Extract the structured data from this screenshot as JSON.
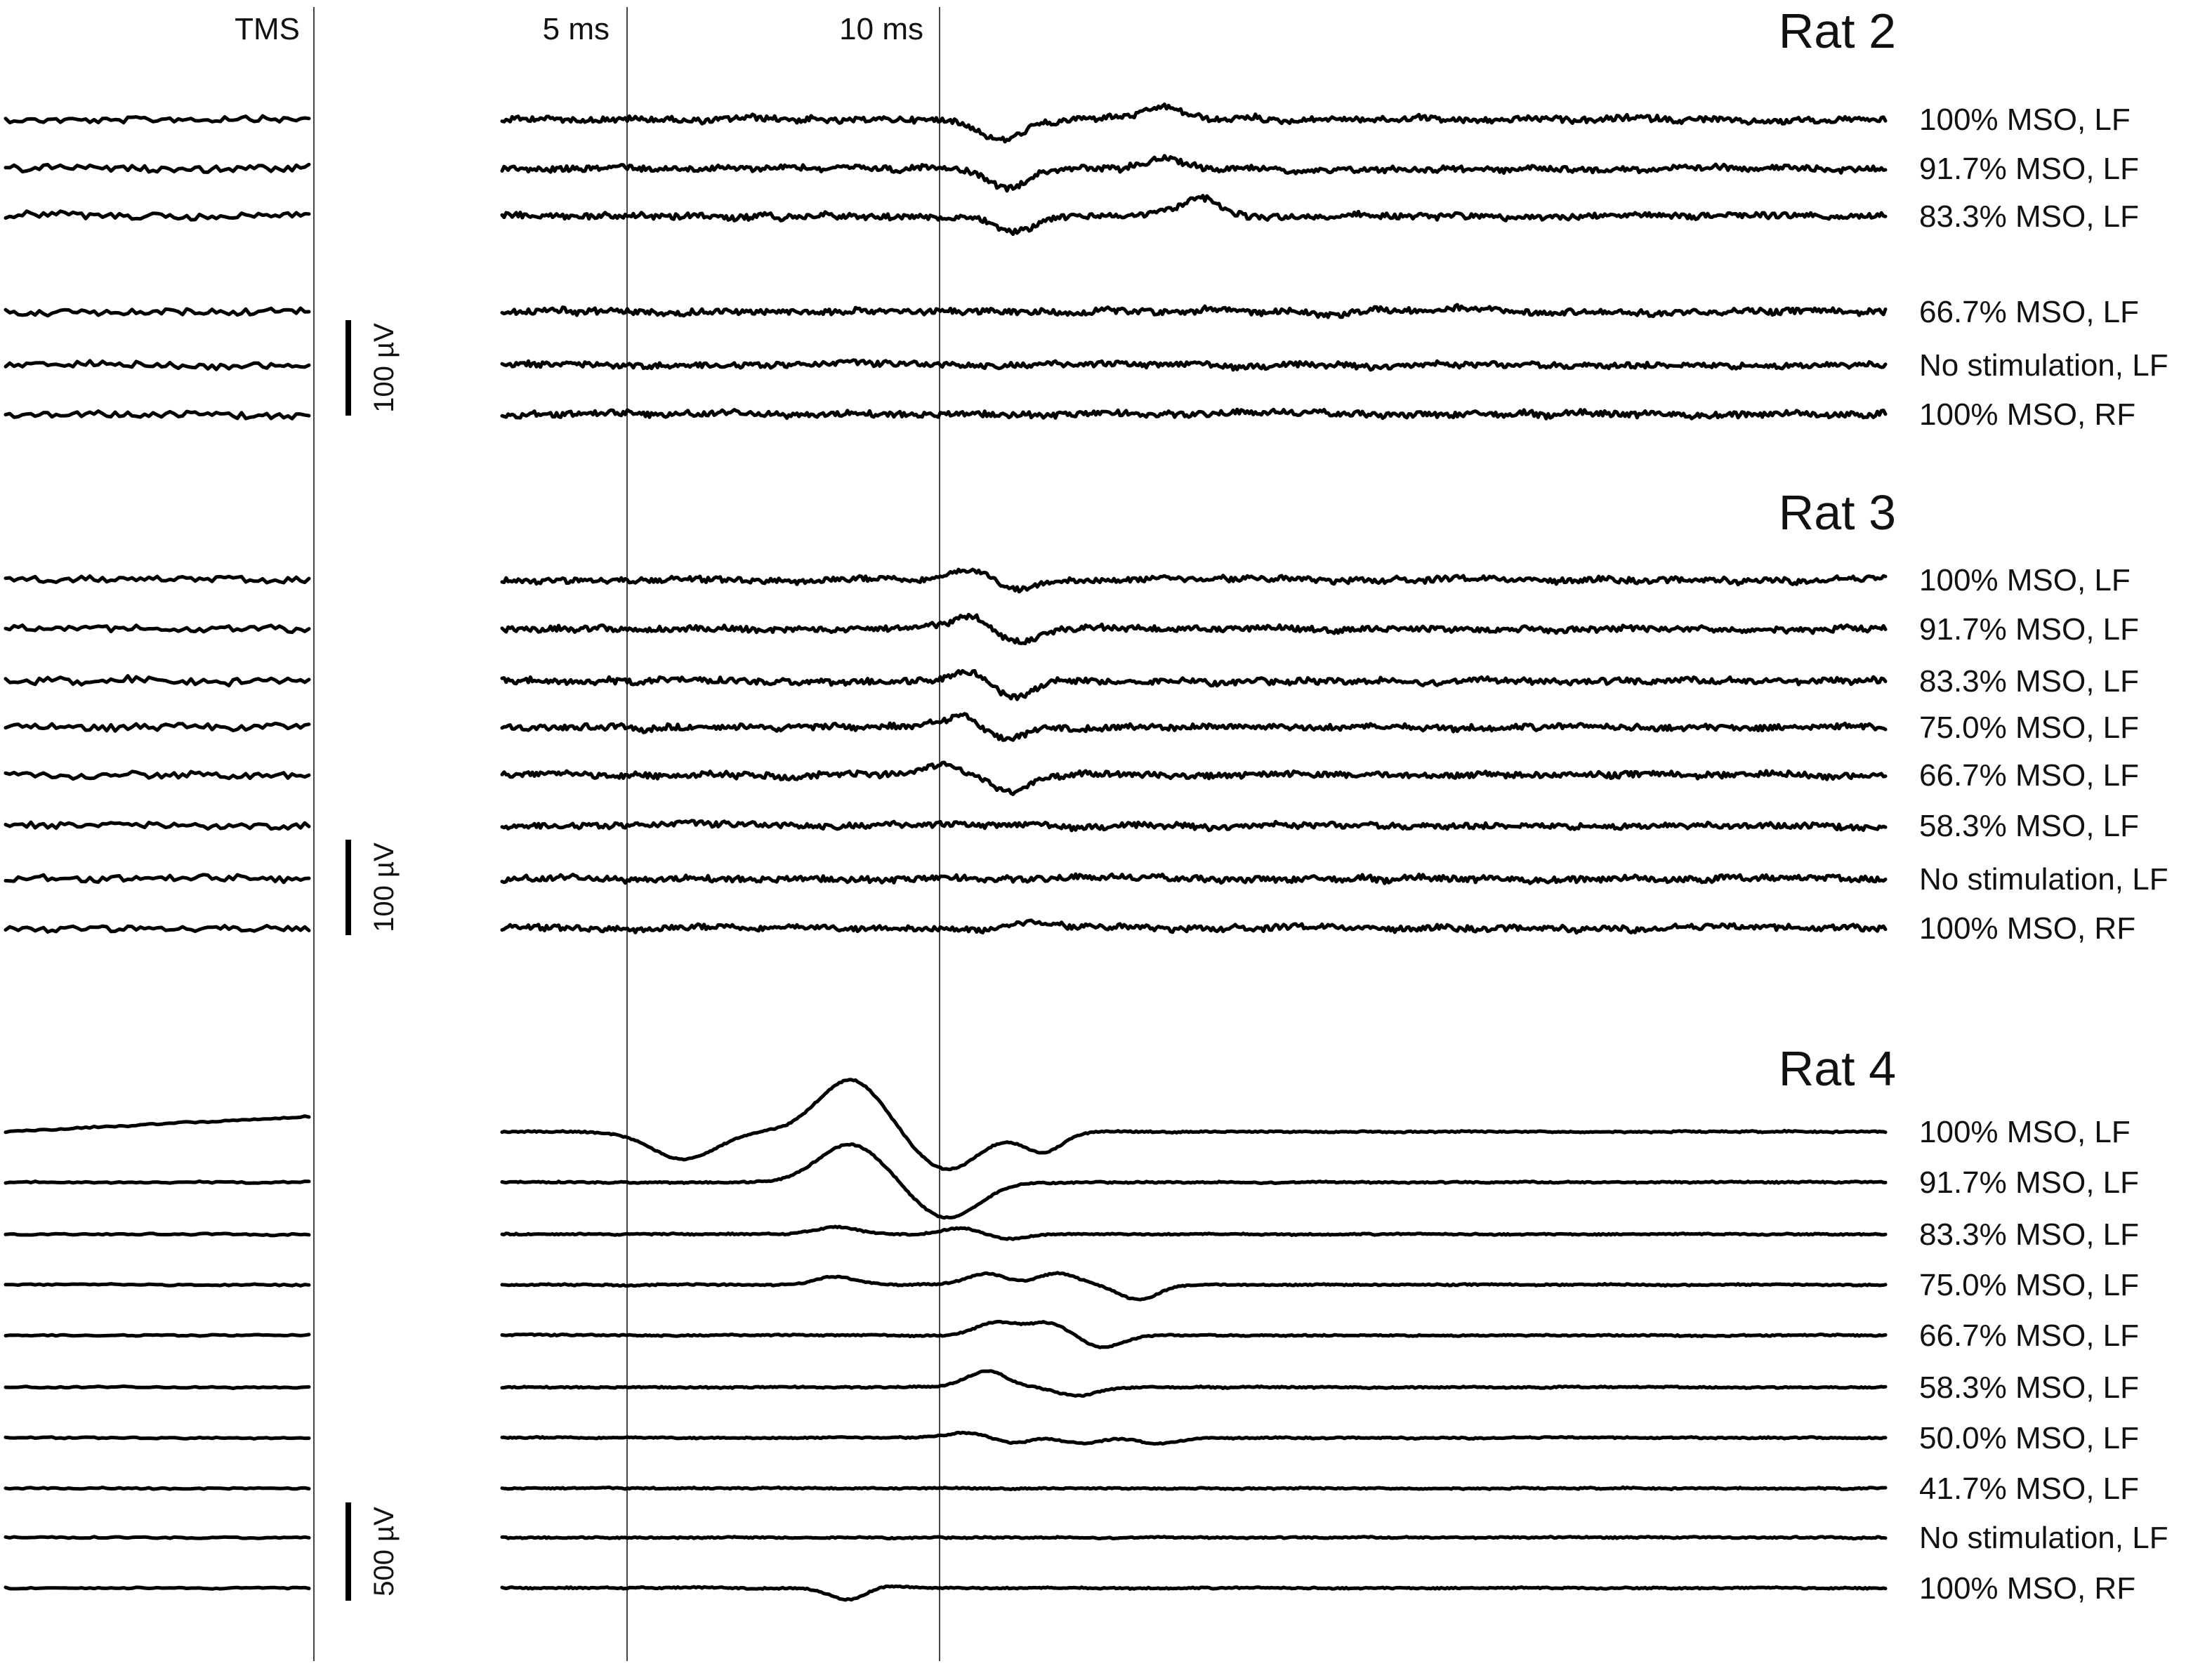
{
  "chart_data": {
    "type": "line",
    "title": "",
    "xlabel": "",
    "ylabel": "",
    "grid": false,
    "axis_markers": [
      {
        "label": "TMS",
        "time_ms": 0
      },
      {
        "label": "5 ms",
        "time_ms": 5
      },
      {
        "label": "10 ms",
        "time_ms": 10
      }
    ],
    "panels": [
      {
        "title": "Rat 2",
        "scale_bar": "100 µV",
        "traces": [
          {
            "name": "100% MSO, LF",
            "peaks": [
              {
                "t_ms": 11.3,
                "v": -55
              },
              {
                "t_ms": 14.5,
                "v": 30
              }
            ]
          },
          {
            "name": "91.7% MSO, LF",
            "peaks": [
              {
                "t_ms": 11.4,
                "v": -55
              },
              {
                "t_ms": 14.5,
                "v": 30
              }
            ]
          },
          {
            "name": "83.3% MSO, LF",
            "peaks": [
              {
                "t_ms": 11.6,
                "v": -45
              },
              {
                "t_ms": 15.2,
                "v": 45
              }
            ]
          },
          {
            "name": "66.7% MSO, LF",
            "peaks": [
              {
                "t_ms": 15.5,
                "v": 10
              },
              {
                "t_ms": 17.8,
                "v": -15
              },
              {
                "t_ms": 20.3,
                "v": 10
              }
            ]
          },
          {
            "name": "No stimulation, LF",
            "peaks": []
          },
          {
            "name": "100% MSO, RF",
            "peaks": []
          }
        ]
      },
      {
        "title": "Rat 3",
        "scale_bar": "100 µV",
        "traces": [
          {
            "name": "100% MSO, LF",
            "peaks": [
              {
                "t_ms": 10.7,
                "v": 25
              },
              {
                "t_ms": 11.6,
                "v": -25
              }
            ]
          },
          {
            "name": "91.7% MSO, LF",
            "peaks": [
              {
                "t_ms": 10.7,
                "v": 35
              },
              {
                "t_ms": 11.6,
                "v": -40
              }
            ]
          },
          {
            "name": "83.3% MSO, LF",
            "peaks": [
              {
                "t_ms": 10.7,
                "v": 30
              },
              {
                "t_ms": 11.5,
                "v": -45
              }
            ]
          },
          {
            "name": "75.0% MSO, LF",
            "peaks": [
              {
                "t_ms": 10.5,
                "v": 30
              },
              {
                "t_ms": 11.4,
                "v": -40
              }
            ]
          },
          {
            "name": "66.7% MSO, LF",
            "peaks": [
              {
                "t_ms": 10.1,
                "v": 30
              },
              {
                "t_ms": 11.5,
                "v": -45
              }
            ]
          },
          {
            "name": "58.3% MSO, LF",
            "peaks": []
          },
          {
            "name": "No stimulation, LF",
            "peaks": []
          },
          {
            "name": "100% MSO, RF",
            "peaks": [
              {
                "t_ms": 11.2,
                "v": -12
              },
              {
                "t_ms": 11.8,
                "v": 18
              }
            ]
          }
        ]
      },
      {
        "title": "Rat 4",
        "scale_bar": "500 µV",
        "traces": [
          {
            "name": "100% MSO, LF",
            "peaks": [
              {
                "t_ms": -1.4,
                "v": 0
              },
              {
                "t_ms": 5.0,
                "v": -200
              },
              {
                "t_ms": 8.3,
                "v": 380
              },
              {
                "t_ms": 10.2,
                "v": -280
              },
              {
                "t_ms": 12.1,
                "v": -150
              }
            ]
          },
          {
            "name": "91.7% MSO, LF",
            "peaks": [
              {
                "t_ms": 8.3,
                "v": 280
              },
              {
                "t_ms": 10.2,
                "v": -260
              }
            ]
          },
          {
            "name": "83.3% MSO, LF",
            "peaks": [
              {
                "t_ms": 8.0,
                "v": 50
              },
              {
                "t_ms": 10.5,
                "v": 45
              },
              {
                "t_ms": 11.4,
                "v": -35
              }
            ]
          },
          {
            "name": "75.0% MSO, LF",
            "peaks": [
              {
                "t_ms": 8.0,
                "v": 60
              },
              {
                "t_ms": 11.0,
                "v": 80
              },
              {
                "t_ms": 12.4,
                "v": 85
              },
              {
                "t_ms": 14.0,
                "v": -110
              }
            ]
          },
          {
            "name": "66.7% MSO, LF",
            "peaks": [
              {
                "t_ms": 11.2,
                "v": 95
              },
              {
                "t_ms": 12.2,
                "v": 95
              },
              {
                "t_ms": 13.3,
                "v": -90
              }
            ]
          },
          {
            "name": "58.3% MSO, LF",
            "peaks": [
              {
                "t_ms": 11.0,
                "v": 115
              },
              {
                "t_ms": 12.8,
                "v": -60
              }
            ]
          },
          {
            "name": "50.0% MSO, LF",
            "peaks": [
              {
                "t_ms": 10.6,
                "v": 35
              },
              {
                "t_ms": 11.6,
                "v": -40
              },
              {
                "t_ms": 12.2,
                "v": 20
              },
              {
                "t_ms": 12.8,
                "v": -45
              },
              {
                "t_ms": 14.4,
                "v": -45
              }
            ]
          },
          {
            "name": "41.7% MSO, LF",
            "peaks": []
          },
          {
            "name": "No stimulation, LF",
            "peaks": []
          },
          {
            "name": "100% MSO, RF",
            "peaks": [
              {
                "t_ms": 8.3,
                "v": -95
              },
              {
                "t_ms": 8.8,
                "v": 30
              }
            ]
          }
        ]
      }
    ]
  }
}
